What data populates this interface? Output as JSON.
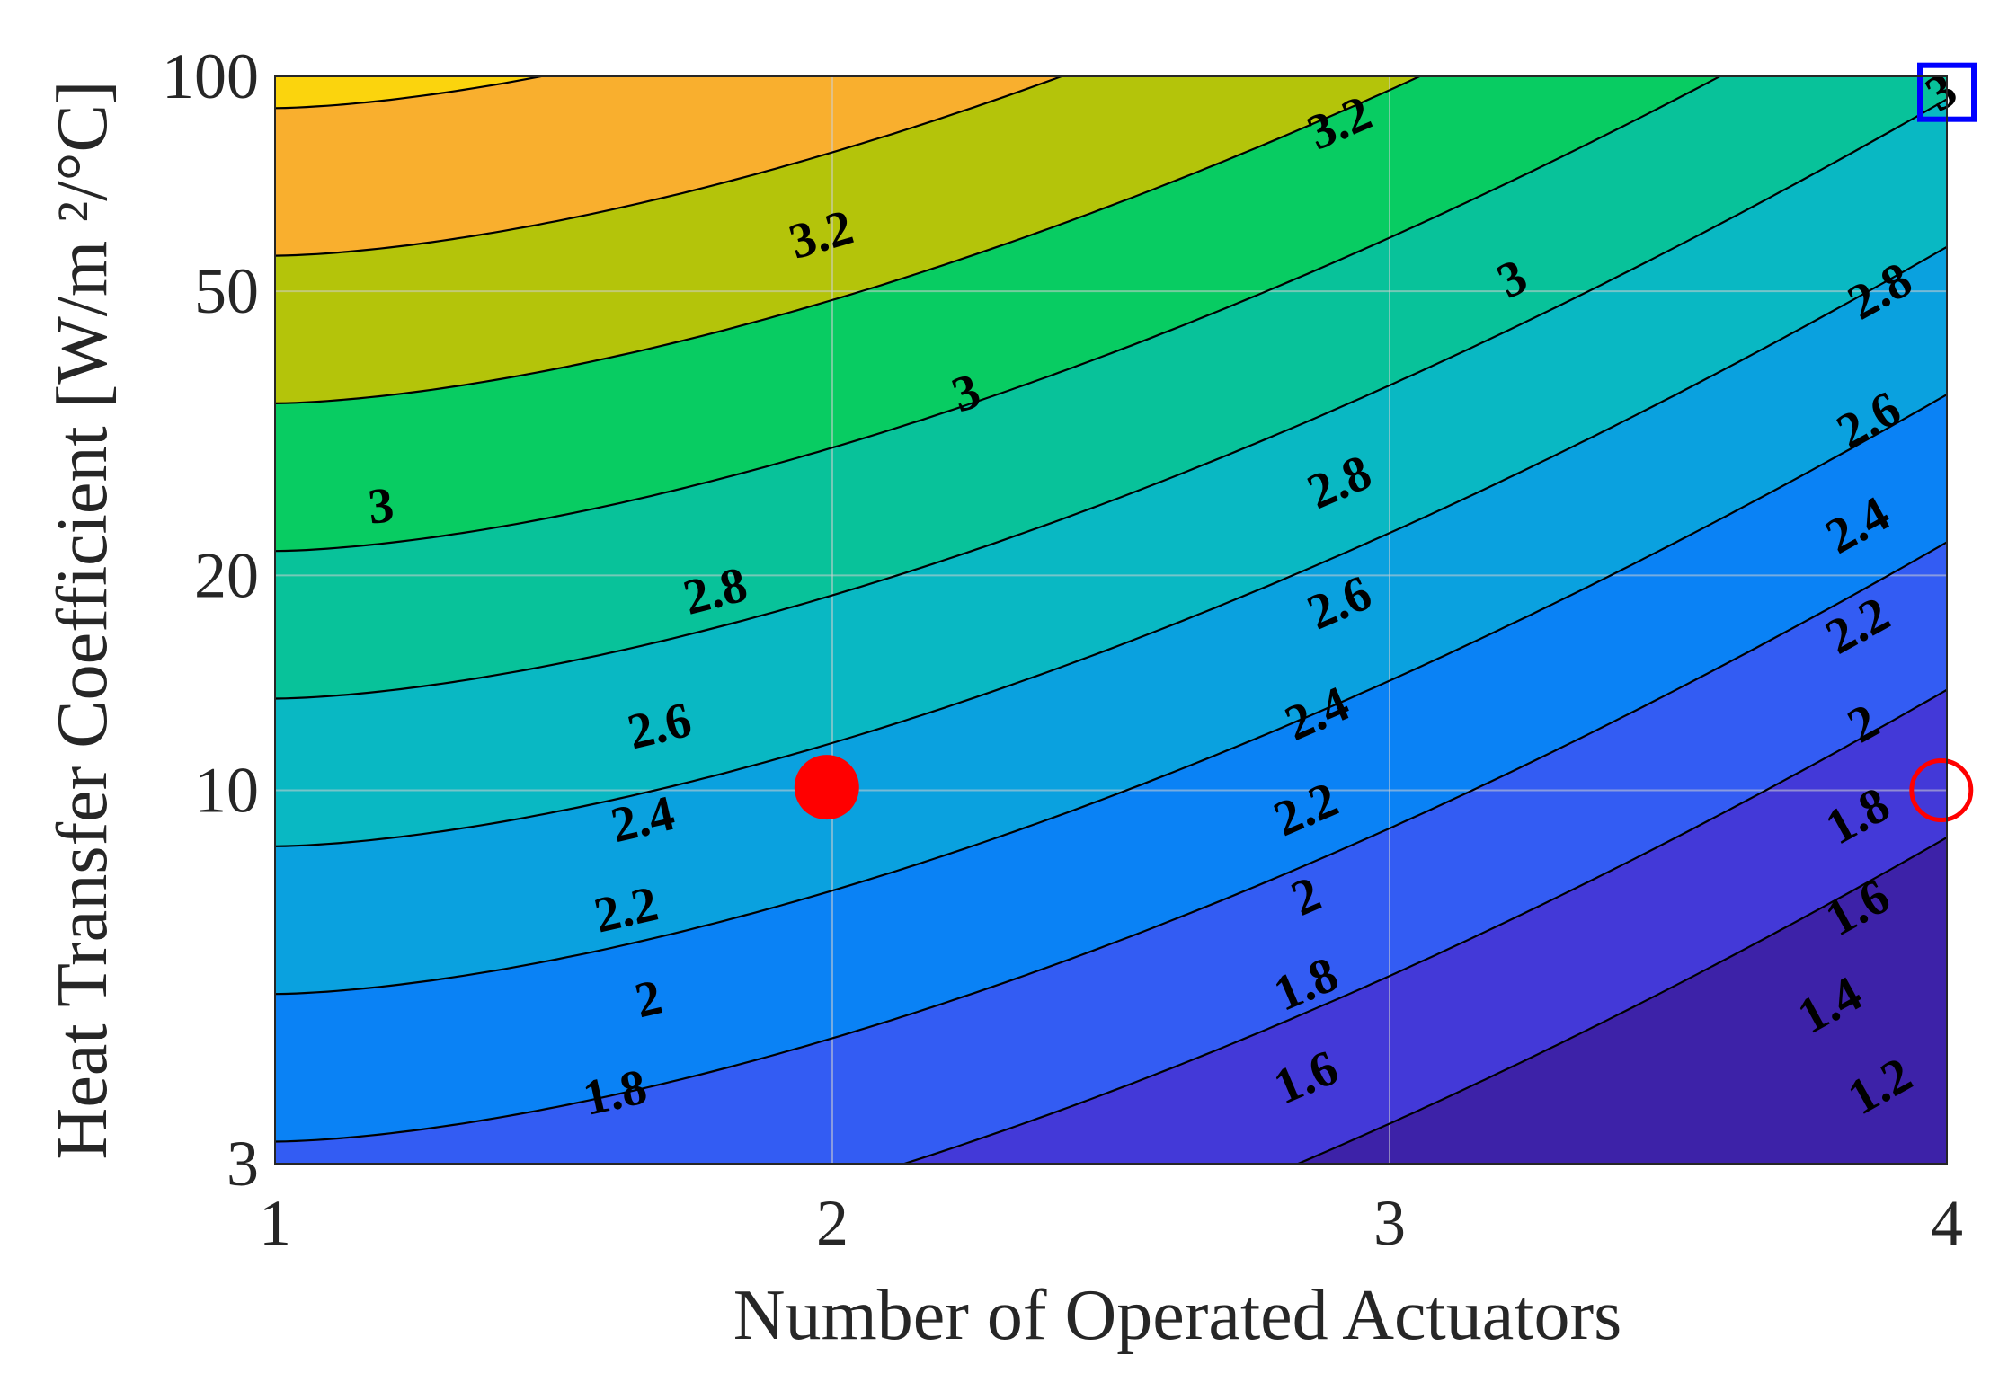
{
  "chart_data": {
    "type": "contour",
    "xlabel": "Number of Operated Actuators",
    "ylabel": "Heat Transfer Coefficient [W/m ²/°C]",
    "xlim": [
      1,
      4
    ],
    "ylim": [
      3,
      100
    ],
    "yscale": "log",
    "grid": true,
    "x_ticks": [
      {
        "value": 1,
        "label": "1"
      },
      {
        "value": 2,
        "label": "2"
      },
      {
        "value": 3,
        "label": "3"
      },
      {
        "value": 4,
        "label": "4"
      }
    ],
    "y_ticks": [
      {
        "value": 3,
        "label": "3"
      },
      {
        "value": 10,
        "label": "10"
      },
      {
        "value": 20,
        "label": "20"
      },
      {
        "value": 50,
        "label": "50"
      },
      {
        "value": 100,
        "label": "100"
      }
    ],
    "levels": [
      1.2,
      1.4,
      1.6,
      1.8,
      2.0,
      2.2,
      2.4,
      2.6,
      2.8,
      3.0,
      3.2
    ],
    "band_colors": [
      "#3d22a8",
      "#4339d8",
      "#335cf3",
      "#0a82f5",
      "#0aa1df",
      "#09b8c3",
      "#08c29a",
      "#08cc62",
      "#b4c40a",
      "#f9af2e",
      "#fbd40d",
      "#f6f710"
    ],
    "model": {
      "description": "value = 4.01 - 0.42*ln(1000/h) - 0.14*(N-1)^1.6"
    },
    "contour_labels": [
      {
        "text": "3.2",
        "x": 1.98,
        "y": 60
      },
      {
        "text": "3.2",
        "x": 2.91,
        "y": 86
      },
      {
        "text": "3",
        "x": 1.19,
        "y": 25
      },
      {
        "text": "3",
        "x": 2.24,
        "y": 36
      },
      {
        "text": "3",
        "x": 3.22,
        "y": 52
      },
      {
        "text": "2.8",
        "x": 1.79,
        "y": 19
      },
      {
        "text": "2.8",
        "x": 2.91,
        "y": 27
      },
      {
        "text": "2.8",
        "x": 3.88,
        "y": 50
      },
      {
        "text": "2.6",
        "x": 1.69,
        "y": 12.3
      },
      {
        "text": "2.6",
        "x": 2.91,
        "y": 18.3
      },
      {
        "text": "2.6",
        "x": 3.86,
        "y": 33
      },
      {
        "text": "2.4",
        "x": 1.66,
        "y": 9.1
      },
      {
        "text": "2.4",
        "x": 2.87,
        "y": 12.8
      },
      {
        "text": "2.4",
        "x": 3.84,
        "y": 23.5
      },
      {
        "text": "2.2",
        "x": 1.63,
        "y": 6.8
      },
      {
        "text": "2.2",
        "x": 2.85,
        "y": 9.4
      },
      {
        "text": "2.2",
        "x": 3.84,
        "y": 17.0
      },
      {
        "text": "2",
        "x": 1.67,
        "y": 5.1
      },
      {
        "text": "2",
        "x": 2.85,
        "y": 7.1
      },
      {
        "text": "2",
        "x": 3.85,
        "y": 12.4
      },
      {
        "text": "1.8",
        "x": 1.61,
        "y": 3.77
      },
      {
        "text": "1.8",
        "x": 2.85,
        "y": 5.35
      },
      {
        "text": "1.8",
        "x": 3.84,
        "y": 9.2
      },
      {
        "text": "1.6",
        "x": 2.85,
        "y": 3.96
      },
      {
        "text": "1.6",
        "x": 3.84,
        "y": 6.85
      },
      {
        "text": "1.4",
        "x": 3.79,
        "y": 5.0
      },
      {
        "text": "1.2",
        "x": 3.88,
        "y": 3.85
      },
      {
        "text": "3",
        "x": 3.99,
        "y": 95
      }
    ],
    "markers": [
      {
        "type": "filled-circle",
        "color": "#ff0000",
        "x": 1.99,
        "y": 10.1
      },
      {
        "type": "open-circle",
        "color": "#ff0000",
        "x": 3.99,
        "y": 10.0
      },
      {
        "type": "open-square",
        "color": "#0000ff",
        "x": 4.0,
        "y": 95
      }
    ]
  }
}
